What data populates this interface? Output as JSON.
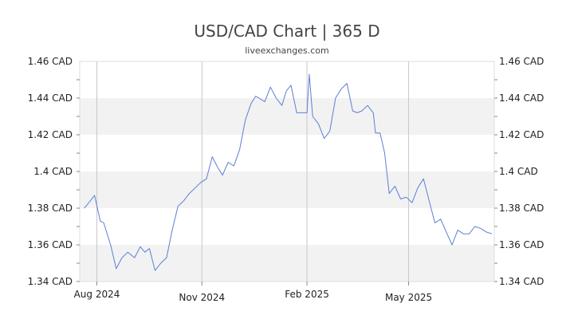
{
  "chart_data": {
    "type": "line",
    "title": "USD/CAD Chart | 365 D",
    "subtitle": "liveexchanges.com",
    "xlabel": "",
    "ylabel": "",
    "ylim": [
      1.34,
      1.46
    ],
    "y_ticks": [
      {
        "value": 1.46,
        "label": "1.46 CAD"
      },
      {
        "value": 1.44,
        "label": "1.44 CAD"
      },
      {
        "value": 1.42,
        "label": "1.42 CAD"
      },
      {
        "value": 1.4,
        "label": "1.4 CAD"
      },
      {
        "value": 1.38,
        "label": "1.38 CAD"
      },
      {
        "value": 1.36,
        "label": "1.36 CAD"
      },
      {
        "value": 1.34,
        "label": "1.34 CAD"
      }
    ],
    "x_range": [
      "2024-07-17",
      "2025-07-15"
    ],
    "x_ticks": [
      {
        "date": "2024-08-01",
        "label": "Aug 2024"
      },
      {
        "date": "2024-11-01",
        "label": "Nov 2024"
      },
      {
        "date": "2025-02-01",
        "label": "Feb 2025"
      },
      {
        "date": "2025-05-01",
        "label": "May 2025"
      }
    ],
    "grid": "horizontal bands, vertical lines at month ticks",
    "line_color": "#5b7fd6",
    "band_color": "#f2f2f2",
    "series": [
      {
        "x": [
          "2024-07-21",
          "2024-07-25",
          "2024-07-30",
          "2024-08-04",
          "2024-08-07",
          "2024-08-13",
          "2024-08-18",
          "2024-08-23",
          "2024-08-28",
          "2024-09-03",
          "2024-09-08",
          "2024-09-12",
          "2024-09-16",
          "2024-09-21",
          "2024-09-26",
          "2024-10-01",
          "2024-10-06",
          "2024-10-11",
          "2024-10-16",
          "2024-10-21",
          "2024-10-26",
          "2024-10-31",
          "2024-11-05",
          "2024-11-10",
          "2024-11-15",
          "2024-11-19",
          "2024-11-24",
          "2024-11-29",
          "2024-12-04",
          "2024-12-09",
          "2024-12-14",
          "2024-12-18",
          "2024-12-21",
          "2024-12-26",
          "2024-12-31",
          "2025-01-05",
          "2025-01-10",
          "2025-01-14",
          "2025-01-18",
          "2025-01-23",
          "2025-01-28",
          "2025-02-01",
          "2025-02-03",
          "2025-02-06",
          "2025-02-11",
          "2025-02-16",
          "2025-02-21",
          "2025-02-26",
          "2025-03-03",
          "2025-03-08",
          "2025-03-13",
          "2025-03-17",
          "2025-03-21",
          "2025-03-26",
          "2025-03-31",
          "2025-04-02",
          "2025-04-06",
          "2025-04-10",
          "2025-04-14",
          "2025-04-19",
          "2025-04-24",
          "2025-04-29",
          "2025-05-04",
          "2025-05-09",
          "2025-05-14",
          "2025-05-19",
          "2025-05-24",
          "2025-05-29",
          "2025-06-03",
          "2025-06-08",
          "2025-06-13",
          "2025-06-18",
          "2025-06-23",
          "2025-06-28",
          "2025-07-03",
          "2025-07-08",
          "2025-07-13"
        ],
        "y": [
          1.38,
          1.383,
          1.387,
          1.373,
          1.372,
          1.36,
          1.347,
          1.353,
          1.356,
          1.353,
          1.359,
          1.356,
          1.358,
          1.346,
          1.35,
          1.353,
          1.368,
          1.381,
          1.384,
          1.388,
          1.391,
          1.394,
          1.396,
          1.408,
          1.402,
          1.398,
          1.405,
          1.403,
          1.412,
          1.428,
          1.437,
          1.441,
          1.44,
          1.438,
          1.446,
          1.44,
          1.436,
          1.444,
          1.447,
          1.432,
          1.432,
          1.432,
          1.453,
          1.43,
          1.426,
          1.418,
          1.422,
          1.44,
          1.445,
          1.448,
          1.433,
          1.432,
          1.433,
          1.436,
          1.432,
          1.421,
          1.421,
          1.41,
          1.388,
          1.392,
          1.385,
          1.386,
          1.383,
          1.391,
          1.396,
          1.384,
          1.372,
          1.374,
          1.367,
          1.36,
          1.368,
          1.366,
          1.366,
          1.37,
          1.369,
          1.367,
          1.366
        ]
      }
    ]
  }
}
